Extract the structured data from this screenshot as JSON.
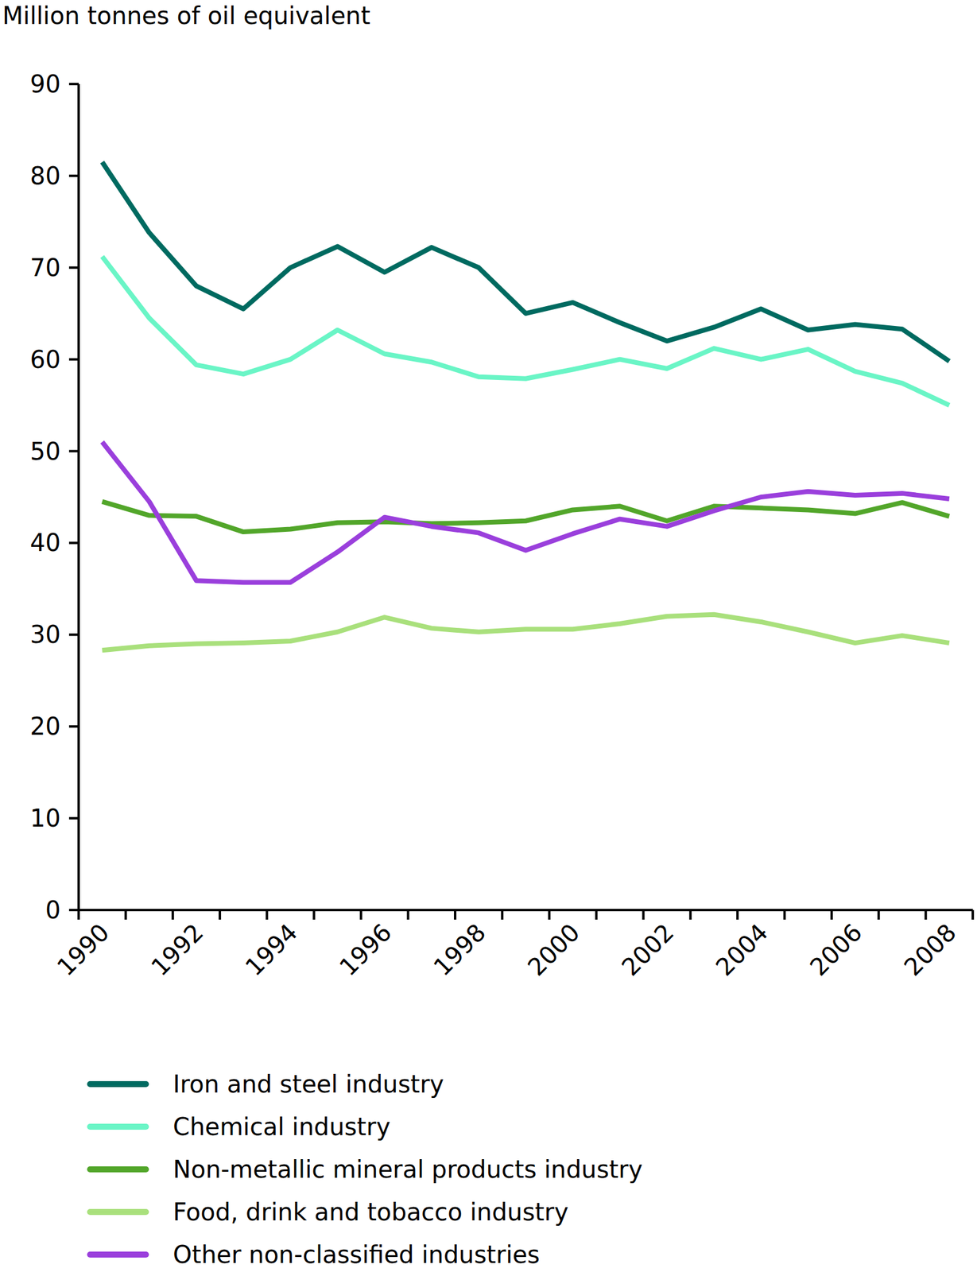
{
  "chart_data": {
    "type": "line",
    "y_label": "Million tonnes of oil equivalent",
    "categories": [
      "1990",
      null,
      "1992",
      null,
      "1994",
      null,
      "1996",
      null,
      "1998",
      null,
      "2000",
      null,
      "2002",
      null,
      "2004",
      null,
      "2006",
      null,
      "2008"
    ],
    "series": [
      {
        "name": "Iron and steel industry",
        "color": "#006a60",
        "values": [
          81.5,
          73.8,
          68,
          65.5,
          70,
          72.3,
          69.5,
          72.2,
          70,
          65,
          66.2,
          64,
          62,
          63.5,
          65.5,
          63.2,
          63.8,
          63.3,
          59.8
        ]
      },
      {
        "name": "Chemical industry",
        "color": "#6af5c6",
        "values": [
          71.2,
          64.5,
          59.4,
          58.4,
          60,
          63.2,
          60.6,
          59.7,
          58.1,
          57.9,
          58.9,
          60,
          59,
          61.2,
          60,
          61.1,
          58.7,
          57.4,
          55
        ]
      },
      {
        "name": "Non-metallic mineral products industry",
        "color": "#52a62a",
        "values": [
          44.5,
          43,
          42.9,
          41.2,
          41.5,
          42.2,
          42.3,
          42.1,
          42.2,
          42.4,
          43.6,
          44,
          42.4,
          44,
          43.8,
          43.6,
          43.2,
          44.4,
          42.9
        ]
      },
      {
        "name": "Food, drink and tobacco industry",
        "color": "#a9e07c",
        "values": [
          28.3,
          28.8,
          29,
          29.1,
          29.3,
          30.3,
          31.9,
          30.7,
          30.3,
          30.6,
          30.6,
          31.2,
          32,
          32.2,
          31.4,
          30.3,
          29.1,
          29.9,
          29.1
        ]
      },
      {
        "name": "Other non-classified industries",
        "color": "#9a3fdc",
        "values": [
          51,
          44.5,
          35.9,
          35.7,
          35.7,
          39,
          42.8,
          41.8,
          41.1,
          39.2,
          41,
          42.6,
          41.8,
          43.5,
          45,
          45.6,
          45.2,
          45.4,
          44.8
        ]
      }
    ],
    "ylim": [
      0,
      90
    ],
    "yticks": [
      0,
      10,
      20,
      30,
      40,
      50,
      60,
      70,
      80,
      90
    ],
    "grid": false,
    "legend": "bottom"
  }
}
